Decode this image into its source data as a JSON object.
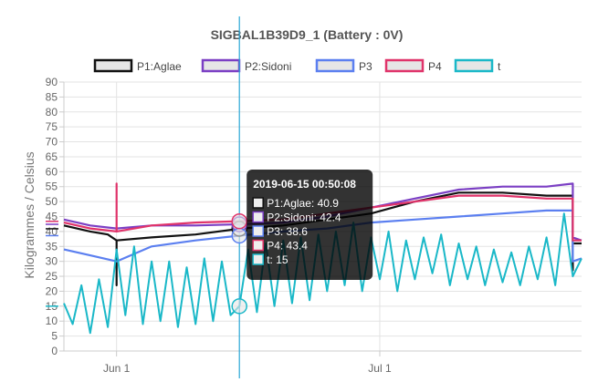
{
  "chart_data": {
    "type": "line",
    "title": "SIGBAL1B39D9_1    (Battery : 0V)",
    "ylabel": "Kilogrammes  / Celsius",
    "ylim": [
      0,
      90
    ],
    "yticks": [
      0,
      5,
      10,
      15,
      20,
      25,
      30,
      35,
      40,
      45,
      50,
      55,
      60,
      65,
      70,
      75,
      80,
      85,
      90
    ],
    "xlim": [
      "2019-05-26",
      "2019-07-24"
    ],
    "xticks": [
      {
        "label": "Jun 1",
        "date": "2019-06-01"
      },
      {
        "label": "Jul 1",
        "date": "2019-07-01"
      }
    ],
    "grid": true,
    "legend_position": "top",
    "series": [
      {
        "name": "P1:Aglae",
        "color": "#111111",
        "fill": "#e6e6e6",
        "points": [
          [
            "2019-05-26",
            42
          ],
          [
            "2019-05-29",
            40
          ],
          [
            "2019-05-31",
            39
          ],
          [
            "2019-06-01",
            37
          ],
          [
            "2019-06-01",
            22
          ],
          [
            "2019-06-01",
            37
          ],
          [
            "2019-06-05",
            38
          ],
          [
            "2019-06-10",
            39
          ],
          [
            "2019-06-15",
            40.9
          ],
          [
            "2019-06-20",
            42
          ],
          [
            "2019-06-25",
            44
          ],
          [
            "2019-06-30",
            46
          ],
          [
            "2019-07-05",
            50
          ],
          [
            "2019-07-10",
            53
          ],
          [
            "2019-07-15",
            53
          ],
          [
            "2019-07-20",
            52
          ],
          [
            "2019-07-23",
            52
          ],
          [
            "2019-07-23",
            27
          ],
          [
            "2019-07-23",
            36
          ],
          [
            "2019-07-24",
            36
          ]
        ]
      },
      {
        "name": "P2:Sidoni",
        "color": "#7b3fc4",
        "fill": "#e6e6e6",
        "points": [
          [
            "2019-05-26",
            44
          ],
          [
            "2019-05-29",
            42
          ],
          [
            "2019-06-01",
            41
          ],
          [
            "2019-06-05",
            42
          ],
          [
            "2019-06-10",
            42
          ],
          [
            "2019-06-15",
            42.4
          ],
          [
            "2019-06-20",
            43
          ],
          [
            "2019-06-25",
            45
          ],
          [
            "2019-06-30",
            48
          ],
          [
            "2019-07-05",
            51
          ],
          [
            "2019-07-10",
            54
          ],
          [
            "2019-07-15",
            55
          ],
          [
            "2019-07-20",
            55
          ],
          [
            "2019-07-23",
            56
          ],
          [
            "2019-07-23",
            38
          ],
          [
            "2019-07-24",
            37
          ]
        ]
      },
      {
        "name": "P3",
        "color": "#5b7ff0",
        "fill": "#e6e6e6",
        "points": [
          [
            "2019-05-26",
            34
          ],
          [
            "2019-05-29",
            32
          ],
          [
            "2019-06-01",
            30
          ],
          [
            "2019-06-05",
            35
          ],
          [
            "2019-06-10",
            37
          ],
          [
            "2019-06-15",
            38.6
          ],
          [
            "2019-06-20",
            40
          ],
          [
            "2019-06-25",
            41
          ],
          [
            "2019-06-30",
            43
          ],
          [
            "2019-07-05",
            44
          ],
          [
            "2019-07-10",
            45
          ],
          [
            "2019-07-15",
            46
          ],
          [
            "2019-07-20",
            47
          ],
          [
            "2019-07-23",
            47
          ],
          [
            "2019-07-23",
            30
          ],
          [
            "2019-07-24",
            31
          ]
        ]
      },
      {
        "name": "P4",
        "color": "#e0336a",
        "fill": "#e6e6e6",
        "points": [
          [
            "2019-05-26",
            43
          ],
          [
            "2019-05-29",
            41
          ],
          [
            "2019-06-01",
            40
          ],
          [
            "2019-06-01",
            56
          ],
          [
            "2019-06-01",
            40
          ],
          [
            "2019-06-05",
            42
          ],
          [
            "2019-06-10",
            43
          ],
          [
            "2019-06-15",
            43.4
          ],
          [
            "2019-06-20",
            44
          ],
          [
            "2019-06-25",
            46
          ],
          [
            "2019-06-30",
            48
          ],
          [
            "2019-07-05",
            50
          ],
          [
            "2019-07-10",
            52
          ],
          [
            "2019-07-15",
            52
          ],
          [
            "2019-07-20",
            51
          ],
          [
            "2019-07-23",
            51
          ],
          [
            "2019-07-23",
            37
          ],
          [
            "2019-07-24",
            37
          ]
        ]
      },
      {
        "name": "t",
        "color": "#1ab8c8",
        "fill": "#e6e6e6",
        "points": [
          [
            "2019-05-26",
            16
          ],
          [
            "2019-05-27",
            9
          ],
          [
            "2019-05-28",
            22
          ],
          [
            "2019-05-29",
            6
          ],
          [
            "2019-05-30",
            24
          ],
          [
            "2019-05-31",
            8
          ],
          [
            "2019-06-01",
            34
          ],
          [
            "2019-06-02",
            12
          ],
          [
            "2019-06-03",
            35
          ],
          [
            "2019-06-04",
            9
          ],
          [
            "2019-06-05",
            30
          ],
          [
            "2019-06-06",
            10
          ],
          [
            "2019-06-07",
            30
          ],
          [
            "2019-06-08",
            8
          ],
          [
            "2019-06-09",
            28
          ],
          [
            "2019-06-10",
            9
          ],
          [
            "2019-06-11",
            31
          ],
          [
            "2019-06-12",
            10
          ],
          [
            "2019-06-13",
            30
          ],
          [
            "2019-06-14",
            12
          ],
          [
            "2019-06-15",
            15
          ],
          [
            "2019-06-16",
            34
          ],
          [
            "2019-06-17",
            13
          ],
          [
            "2019-06-18",
            36
          ],
          [
            "2019-06-19",
            15
          ],
          [
            "2019-06-20",
            37
          ],
          [
            "2019-06-21",
            16
          ],
          [
            "2019-06-22",
            38
          ],
          [
            "2019-06-23",
            17
          ],
          [
            "2019-06-24",
            39
          ],
          [
            "2019-06-25",
            20
          ],
          [
            "2019-06-26",
            40
          ],
          [
            "2019-06-27",
            22
          ],
          [
            "2019-06-28",
            43
          ],
          [
            "2019-06-29",
            20
          ],
          [
            "2019-06-30",
            38
          ],
          [
            "2019-07-01",
            24
          ],
          [
            "2019-07-02",
            40
          ],
          [
            "2019-07-03",
            20
          ],
          [
            "2019-07-04",
            37
          ],
          [
            "2019-07-05",
            24
          ],
          [
            "2019-07-06",
            38
          ],
          [
            "2019-07-07",
            26
          ],
          [
            "2019-07-08",
            39
          ],
          [
            "2019-07-09",
            22
          ],
          [
            "2019-07-10",
            36
          ],
          [
            "2019-07-11",
            24
          ],
          [
            "2019-07-12",
            35
          ],
          [
            "2019-07-13",
            22
          ],
          [
            "2019-07-14",
            34
          ],
          [
            "2019-07-15",
            23
          ],
          [
            "2019-07-16",
            33
          ],
          [
            "2019-07-17",
            22
          ],
          [
            "2019-07-18",
            35
          ],
          [
            "2019-07-19",
            24
          ],
          [
            "2019-07-20",
            38
          ],
          [
            "2019-07-21",
            22
          ],
          [
            "2019-07-22",
            46
          ],
          [
            "2019-07-23",
            25
          ],
          [
            "2019-07-24",
            31
          ]
        ]
      }
    ],
    "hover": {
      "date": "2019-06-15",
      "title": "2019-06-15 00:50:08",
      "lines": [
        "P1:Aglae: 40.9",
        "P2:Sidoni: 42.4",
        "P3: 38.6",
        "P4: 43.4",
        "t: 15"
      ],
      "values": [
        40.9,
        42.4,
        38.6,
        43.4,
        15
      ]
    }
  }
}
